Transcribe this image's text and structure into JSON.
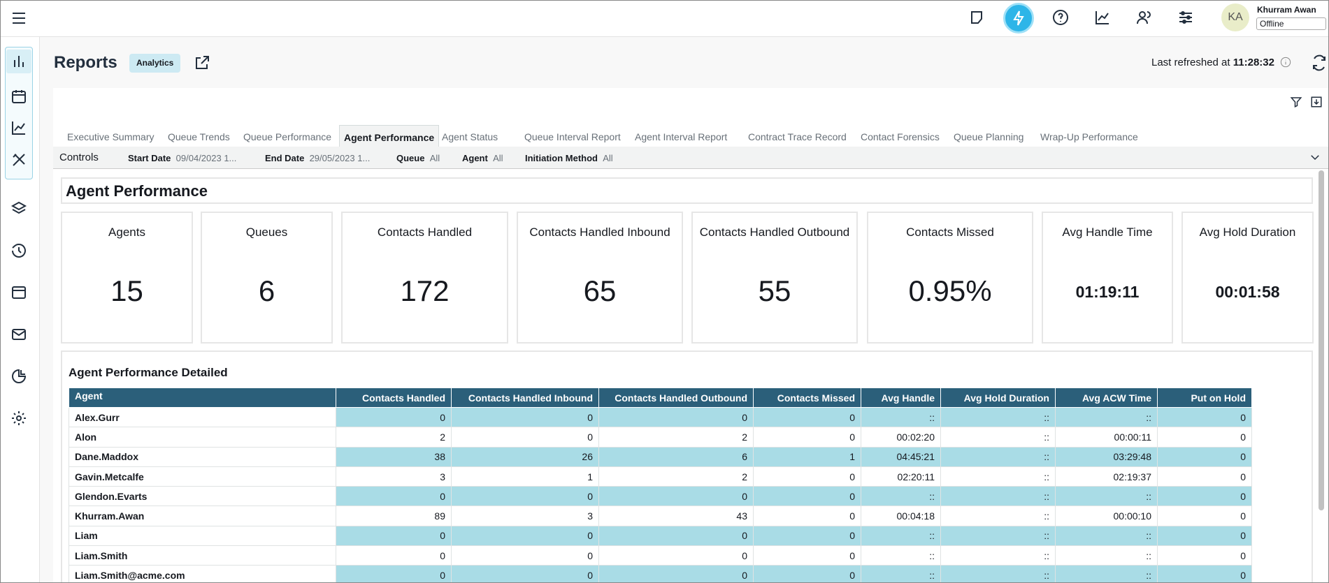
{
  "header": {
    "avatar": "KA",
    "user_name": "Khurram Awan",
    "status": "Offline"
  },
  "page": {
    "title": "Reports",
    "badge": "Analytics",
    "refreshed_label": "Last refreshed at",
    "refreshed_time": "11:28:32"
  },
  "tabs": {
    "items": [
      "Executive Summary",
      "Queue Trends",
      "Queue Performance",
      "Agent Performance",
      "Agent Status",
      "Queue Interval Report",
      "Agent Interval Report",
      "Contract Trace Record",
      "Contact Forensics",
      "Queue Planning",
      "Wrap-Up Performance"
    ],
    "active": 3
  },
  "controls": {
    "label": "Controls",
    "filters": [
      {
        "label": "Start Date",
        "value": "09/04/2023 1..."
      },
      {
        "label": "End Date",
        "value": "29/05/2023 1..."
      },
      {
        "label": "Queue",
        "value": "All"
      },
      {
        "label": "Agent",
        "value": "All"
      },
      {
        "label": "Initiation Method",
        "value": "All"
      }
    ]
  },
  "section_title": "Agent Performance",
  "kpis": [
    {
      "label": "Agents",
      "value": 15
    },
    {
      "label": "Queues",
      "value": 6
    },
    {
      "label": "Contacts Handled",
      "value": 172
    },
    {
      "label": "Contacts Handled Inbound",
      "value": 65
    },
    {
      "label": "Contacts Handled Outbound",
      "value": 55
    },
    {
      "label": "Contacts Missed",
      "value": "0.95%"
    },
    {
      "label": "Avg Handle Time",
      "value": "01:19:11"
    },
    {
      "label": "Avg Hold Duration",
      "value": "00:01:58"
    }
  ],
  "table": {
    "title": "Agent Performance Detailed",
    "columns": [
      "Agent",
      "Contacts Handled",
      "Contacts Handled Inbound",
      "Contacts Handled Outbound",
      "Contacts Missed",
      "Avg Handle",
      "Avg Hold Duration",
      "Avg ACW Time",
      "Put on Hold"
    ],
    "rows": [
      [
        "Alex.Gurr",
        0,
        0,
        0,
        0,
        "::",
        "::",
        "::",
        0
      ],
      [
        "Alon",
        2,
        0,
        2,
        0,
        "00:02:20",
        "::",
        "00:00:11",
        0
      ],
      [
        "Dane.Maddox",
        38,
        26,
        6,
        1,
        "04:45:21",
        "::",
        "03:29:48",
        0
      ],
      [
        "Gavin.Metcalfe",
        3,
        1,
        2,
        0,
        "02:20:11",
        "::",
        "02:19:37",
        0
      ],
      [
        "Glendon.Evarts",
        0,
        0,
        0,
        0,
        "::",
        "::",
        "::",
        0
      ],
      [
        "Khurram.Awan",
        89,
        3,
        43,
        0,
        "00:04:18",
        "::",
        "00:00:10",
        0
      ],
      [
        "Liam",
        0,
        0,
        0,
        0,
        "::",
        "::",
        "::",
        0
      ],
      [
        "Liam.Smith",
        0,
        0,
        0,
        0,
        "::",
        "::",
        "::",
        0
      ],
      [
        "Liam.Smith@acme.com",
        0,
        0,
        0,
        0,
        "::",
        "::",
        "::",
        0
      ]
    ]
  }
}
